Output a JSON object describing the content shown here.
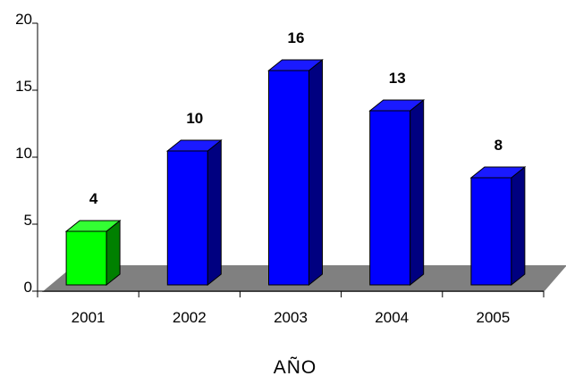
{
  "chart_data": {
    "type": "bar",
    "title": "",
    "xlabel": "AÑO",
    "ylabel": "",
    "categories": [
      "2001",
      "2002",
      "2003",
      "2004",
      "2005"
    ],
    "values": [
      4,
      10,
      16,
      13,
      8
    ],
    "data_labels": [
      "4",
      "10",
      "16",
      "13",
      "8"
    ],
    "ylim": [
      0,
      20
    ],
    "yticks": [
      0,
      5,
      10,
      15,
      20
    ],
    "ytick_labels": [
      "0",
      "5",
      "10",
      "15",
      "20"
    ],
    "three_d": true,
    "grid": false,
    "legend": "none",
    "colors": {
      "highlight_front": "#00ff00",
      "highlight_side": "#008000",
      "highlight_top": "#33ff33",
      "bar_front": "#0000ff",
      "bar_side": "#000080",
      "bar_top": "#1a1aff",
      "floor": "#808080"
    },
    "highlight_index": 0
  }
}
